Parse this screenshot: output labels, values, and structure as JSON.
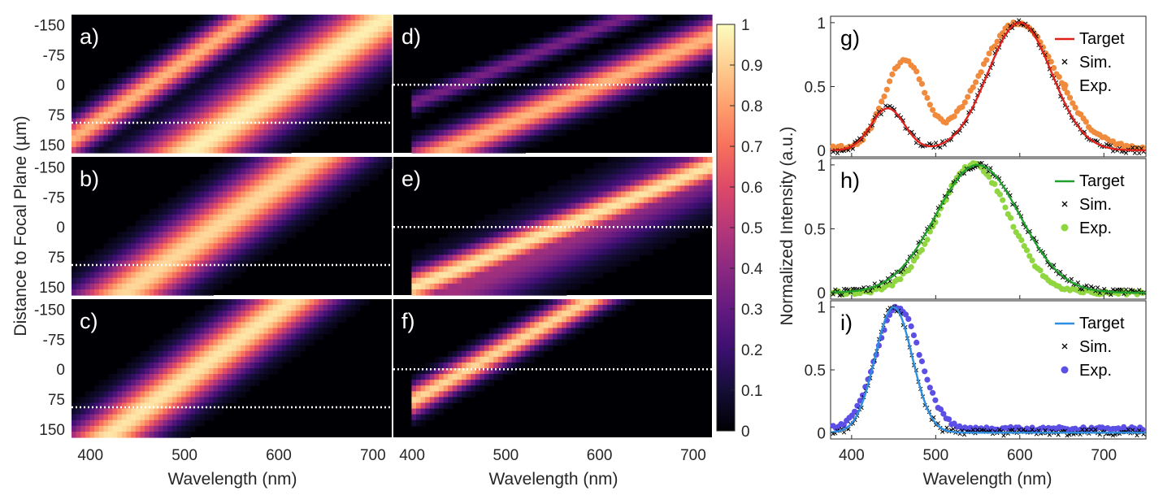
{
  "chart_data": [
    {
      "type": "heatmap",
      "group": "simulated-focal-scans",
      "xlabel": "Wavelength (nm)",
      "ylabel": "Distance to Focal Plane (µm)",
      "xticks": [
        "400",
        "500",
        "600",
        "700"
      ],
      "yticks": [
        "-150",
        "-75",
        "0",
        "75",
        "150"
      ],
      "xlim": [
        380,
        720
      ],
      "ylim": [
        -175,
        170
      ],
      "panels": [
        {
          "label": "a)",
          "dashed_line_um": 95,
          "bands": [
            {
              "wl": 465,
              "slope": 0.62,
              "width": 20,
              "peak": 0.85
            },
            {
              "wl": 610,
              "slope": 0.62,
              "width": 40,
              "peak": 0.97
            }
          ],
          "x_start": 380
        },
        {
          "label": "d)",
          "dashed_line_um": 0,
          "bands": [
            {
              "wl": 450,
              "slope": 1.05,
              "width": 18,
              "peak": 0.35
            },
            {
              "wl": 600,
              "slope": 1.0,
              "width": 32,
              "peak": 0.85
            }
          ],
          "x_start": 400
        },
        {
          "label": "b)",
          "dashed_line_um": 95,
          "bands": [
            {
              "wl": 535,
              "slope": 0.6,
              "width": 36,
              "peak": 0.92
            }
          ],
          "x_start": 380
        },
        {
          "label": "e)",
          "dashed_line_um": 0,
          "bands": [
            {
              "wl": 560,
              "slope": 1.05,
              "width": 30,
              "peak": 0.95
            },
            {
              "wl": 585,
              "slope": 0.9,
              "width": 55,
              "peak": 0.45
            }
          ],
          "x_start": 400
        },
        {
          "label": "c)",
          "dashed_line_um": 95,
          "bands": [
            {
              "wl": 515,
              "slope": 0.58,
              "width": 32,
              "peak": 0.95
            }
          ],
          "x_start": 380
        },
        {
          "label": "f)",
          "dashed_line_um": 0,
          "bands": [
            {
              "wl": 460,
              "slope": 0.75,
              "width": 20,
              "peak": 0.92
            }
          ],
          "x_start": 400
        }
      ]
    },
    {
      "type": "colorbar",
      "ticks": [
        "0",
        "0.1",
        "0.2",
        "0.3",
        "0.4",
        "0.5",
        "0.6",
        "0.7",
        "0.8",
        "0.9",
        "1"
      ],
      "range": [
        0,
        1
      ],
      "colormap": "magma"
    },
    {
      "type": "line",
      "group": "spectra",
      "xlabel": "Wavelength (nm)",
      "ylabel": "Normalized Intensity (a.u.)",
      "xticks": [
        "400",
        "500",
        "600",
        "700"
      ],
      "yticks": [
        "0",
        "0.5",
        "1"
      ],
      "xlim": [
        375,
        750
      ],
      "ylim": [
        -0.05,
        1.05
      ],
      "panels": [
        {
          "label": "g)",
          "legend": [
            "Target",
            "Sim.",
            "Exp."
          ],
          "colors": {
            "target": "#e0201b",
            "sim": "#000000",
            "exp": "#f08a3c"
          },
          "target_peaks": [
            {
              "wl": 443,
              "sigma": 20,
              "amp": 0.33
            },
            {
              "wl": 600,
              "sigma": 38,
              "amp": 1.0
            }
          ],
          "exp_peaks": [
            {
              "wl": 442,
              "sigma": 18,
              "amp": 0.22
            },
            {
              "wl": 468,
              "sigma": 20,
              "amp": 0.6
            },
            {
              "wl": 598,
              "sigma": 45,
              "amp": 1.0
            }
          ],
          "exp_baseline": 0.02
        },
        {
          "label": "h)",
          "legend": [
            "Target",
            "Sim.",
            "Exp."
          ],
          "colors": {
            "target": "#1fa02a",
            "sim": "#000000",
            "exp": "#8fd640"
          },
          "target_peaks": [
            {
              "wl": 550,
              "sigma": 50,
              "amp": 1.0
            }
          ],
          "exp_peaks": [
            {
              "wl": 545,
              "sigma": 42,
              "amp": 1.0
            }
          ],
          "exp_baseline": 0.0
        },
        {
          "label": "i)",
          "legend": [
            "Target",
            "Sim.",
            "Exp."
          ],
          "colors": {
            "target": "#2e8fe0",
            "sim": "#000000",
            "exp": "#5b4fe6"
          },
          "target_peaks": [
            {
              "wl": 450,
              "sigma": 22,
              "amp": 1.0
            }
          ],
          "exp_peaks": [
            {
              "wl": 455,
              "sigma": 26,
              "amp": 1.0
            }
          ],
          "exp_baseline": 0.03
        }
      ]
    }
  ]
}
